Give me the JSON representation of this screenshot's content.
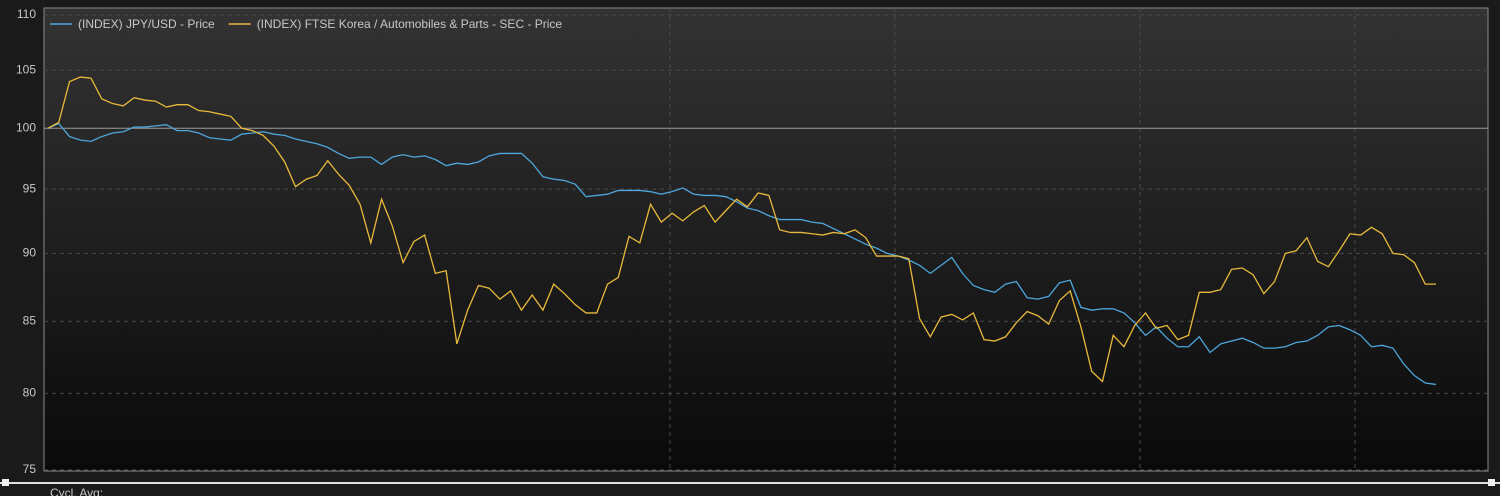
{
  "chart_data": {
    "type": "line",
    "ylim": [
      75,
      110
    ],
    "yticks": [
      75,
      80,
      85,
      90,
      95,
      100,
      105,
      110
    ],
    "log_scale": true,
    "grid": true,
    "baseline": 100,
    "legend": "top-left",
    "footer": "Cycl. Avg:",
    "series": [
      {
        "name": "(INDEX) JPY/USD - Price",
        "color": "#4ea6dc",
        "values": [
          100,
          100.4,
          99.3,
          99,
          98.9,
          99.3,
          99.6,
          99.7,
          100.1,
          100.1,
          100.2,
          100.3,
          99.8,
          99.8,
          99.6,
          99.2,
          99.1,
          99,
          99.5,
          99.6,
          99.7,
          99.5,
          99.4,
          99.1,
          98.9,
          98.7,
          98.4,
          97.9,
          97.5,
          97.6,
          97.6,
          97,
          97.6,
          97.8,
          97.6,
          97.7,
          97.4,
          96.9,
          97.1,
          97,
          97.2,
          97.7,
          97.9,
          97.9,
          97.9,
          97.1,
          96,
          95.8,
          95.7,
          95.4,
          94.4,
          94.5,
          94.6,
          94.9,
          94.9,
          94.9,
          94.8,
          94.6,
          94.8,
          95.1,
          94.6,
          94.5,
          94.5,
          94.4,
          94,
          93.5,
          93.3,
          92.9,
          92.6,
          92.6,
          92.6,
          92.4,
          92.3,
          91.9,
          91.5,
          91.1,
          90.7,
          90.4,
          90,
          89.8,
          89.5,
          89.1,
          88.5,
          89.1,
          89.7,
          88.5,
          87.6,
          87.3,
          87.1,
          87.7,
          87.9,
          86.7,
          86.6,
          86.8,
          87.8,
          88,
          86,
          85.8,
          85.9,
          85.9,
          85.6,
          84.9,
          84,
          84.6,
          83.8,
          83.2,
          83.2,
          83.9,
          82.8,
          83.4,
          83.6,
          83.8,
          83.5,
          83.1,
          83.1,
          83.2,
          83.5,
          83.6,
          84,
          84.6,
          84.7,
          84.4,
          84,
          83.2,
          83.3,
          83.1,
          82,
          81.2,
          80.7,
          80.6
        ]
      },
      {
        "name": "(INDEX) FTSE Korea / Automobiles & Parts - SEC - Price",
        "color": "#e8b93a",
        "values": [
          100,
          100.5,
          104,
          104.4,
          104.3,
          102.5,
          102.1,
          101.9,
          102.6,
          102.4,
          102.3,
          101.8,
          102,
          102,
          101.5,
          101.4,
          101.2,
          101,
          100,
          99.8,
          99.4,
          98.5,
          97.2,
          95.2,
          95.8,
          96.1,
          97.3,
          96.2,
          95.3,
          93.8,
          90.8,
          94.2,
          92.1,
          89.3,
          90.9,
          91.4,
          88.5,
          88.7,
          83.4,
          85.8,
          87.6,
          87.4,
          86.6,
          87.2,
          85.8,
          86.9,
          85.8,
          87.7,
          87,
          86.2,
          85.6,
          85.6,
          87.7,
          88.2,
          91.3,
          90.8,
          93.8,
          92.4,
          93.1,
          92.5,
          93.2,
          93.7,
          92.4,
          93.3,
          94.2,
          93.6,
          94.7,
          94.5,
          91.8,
          91.6,
          91.6,
          91.5,
          91.4,
          91.6,
          91.5,
          91.8,
          91.2,
          89.8,
          89.8,
          89.8,
          89.6,
          85.2,
          83.9,
          85.3,
          85.5,
          85.1,
          85.6,
          83.7,
          83.6,
          83.9,
          84.9,
          85.7,
          85.4,
          84.8,
          86.5,
          87.2,
          84.6,
          81.5,
          80.8,
          84,
          83.2,
          84.7,
          85.6,
          84.5,
          84.7,
          83.7,
          84,
          87.1,
          87.1,
          87.3,
          88.8,
          88.9,
          88.4,
          87,
          87.9,
          90,
          90.2,
          91.2,
          89.4,
          89,
          90.2,
          91.5,
          91.4,
          92,
          91.5,
          90,
          89.9,
          89.3,
          87.7,
          87.7
        ]
      }
    ]
  }
}
